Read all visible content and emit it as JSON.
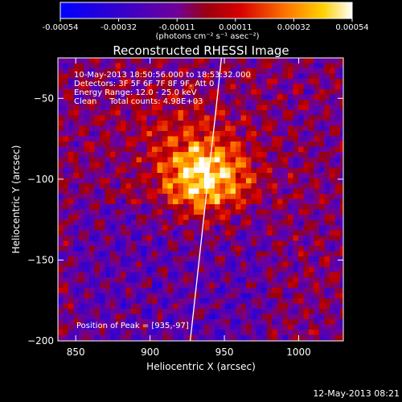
{
  "chart_data": {
    "type": "heatmap",
    "title": "Reconstructed RHESSI Image",
    "xlabel": "Heliocentric X (arcsec)",
    "ylabel": "Heliocentric Y (arcsec)",
    "xlim": [
      838,
      1030
    ],
    "ylim": [
      -200,
      -25
    ],
    "xticks": [
      850,
      900,
      950,
      1000
    ],
    "yticks": [
      -50,
      -100,
      -150,
      -200
    ],
    "colorbar": {
      "unit_label": "(photons cm⁻² s⁻¹ asec⁻²)",
      "ticks": [
        "-0.00054",
        "-0.00032",
        "-0.00011",
        "0.00011",
        "0.00032",
        "0.00054"
      ],
      "range": [
        -0.00054,
        0.00054
      ]
    },
    "annotations": [
      "10-May-2013 18:50:56.000 to 18:53:32.000",
      "Detectors: 3F 5F 6F 7F 8F 9F, Att 0",
      "Energy Range: 12.0 - 25.0 keV",
      "Clean     Total counts: 4.98E+03"
    ],
    "peak_label": "Position of Peak = [935,-97]",
    "peak": {
      "x": 935,
      "y": -97
    },
    "limb_curve": [
      [
        948,
        -25
      ],
      [
        944,
        -60
      ],
      [
        939,
        -100
      ],
      [
        933,
        -150
      ],
      [
        927,
        -200
      ]
    ],
    "grid": false
  },
  "footer": {
    "timestamp": "12-May-2013 08:21"
  }
}
